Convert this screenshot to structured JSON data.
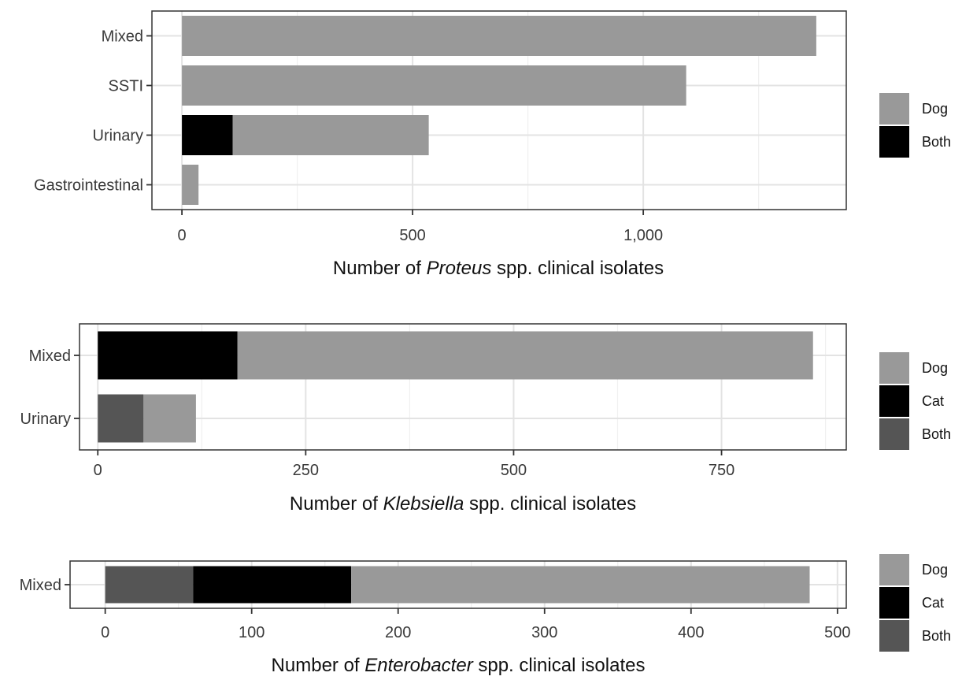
{
  "chart_data": [
    {
      "type": "bar",
      "orientation": "horizontal",
      "stacked": true,
      "xlabel": {
        "prefix": "Number of",
        "organism": "Proteus",
        "suffix": "spp. clinical isolates"
      },
      "xlim": [
        -65,
        1440
      ],
      "xticks": [
        {
          "value": 0,
          "label": "0"
        },
        {
          "value": 500,
          "label": "500"
        },
        {
          "value": 1000,
          "label": "1,000"
        }
      ],
      "minor_gridlines": [
        250,
        750,
        1250
      ],
      "categories": [
        "Mixed",
        "SSTI",
        "Urinary",
        "Gastrointestinal"
      ],
      "series": [
        {
          "name": "Both",
          "color": "#000000",
          "values": [
            0,
            0,
            110,
            0
          ]
        },
        {
          "name": "Dog",
          "color": "#999999",
          "values": [
            1375,
            1093,
            425,
            36
          ]
        }
      ],
      "legend": {
        "position": "right",
        "items": [
          {
            "label": "Dog",
            "color": "#999999"
          },
          {
            "label": "Both",
            "color": "#000000"
          }
        ]
      },
      "grid": true
    },
    {
      "type": "bar",
      "orientation": "horizontal",
      "stacked": true,
      "xlabel": {
        "prefix": "Number of",
        "organism": "Klebsiella",
        "suffix": "spp. clinical isolates"
      },
      "xlim": [
        -22,
        900
      ],
      "xticks": [
        {
          "value": 0,
          "label": "0"
        },
        {
          "value": 250,
          "label": "250"
        },
        {
          "value": 500,
          "label": "500"
        },
        {
          "value": 750,
          "label": "750"
        }
      ],
      "minor_gridlines": [
        125,
        375,
        625,
        875
      ],
      "categories": [
        "Mixed",
        "Urinary"
      ],
      "series": [
        {
          "name": "Both",
          "color": "#555555",
          "values": [
            0,
            55
          ]
        },
        {
          "name": "Cat",
          "color": "#000000",
          "values": [
            168,
            0
          ]
        },
        {
          "name": "Dog",
          "color": "#999999",
          "values": [
            692,
            63
          ]
        }
      ],
      "legend": {
        "position": "right",
        "items": [
          {
            "label": "Dog",
            "color": "#999999"
          },
          {
            "label": "Cat",
            "color": "#000000"
          },
          {
            "label": "Both",
            "color": "#555555"
          }
        ]
      },
      "grid": true
    },
    {
      "type": "bar",
      "orientation": "horizontal",
      "stacked": true,
      "xlabel": {
        "prefix": "Number of",
        "organism": "Enterobacter",
        "suffix": "spp. clinical isolates"
      },
      "xlim": [
        -24,
        506
      ],
      "xticks": [
        {
          "value": 0,
          "label": "0"
        },
        {
          "value": 100,
          "label": "100"
        },
        {
          "value": 200,
          "label": "200"
        },
        {
          "value": 300,
          "label": "300"
        },
        {
          "value": 400,
          "label": "400"
        },
        {
          "value": 500,
          "label": "500"
        }
      ],
      "minor_gridlines": [
        50,
        150,
        250,
        350,
        450
      ],
      "categories": [
        "Mixed"
      ],
      "series": [
        {
          "name": "Both",
          "color": "#555555",
          "values": [
            60
          ]
        },
        {
          "name": "Cat",
          "color": "#000000",
          "values": [
            108
          ]
        },
        {
          "name": "Dog",
          "color": "#999999",
          "values": [
            313
          ]
        }
      ],
      "legend": {
        "position": "right",
        "items": [
          {
            "label": "Dog",
            "color": "#999999"
          },
          {
            "label": "Cat",
            "color": "#000000"
          },
          {
            "label": "Both",
            "color": "#555555"
          }
        ]
      },
      "grid": true
    }
  ]
}
